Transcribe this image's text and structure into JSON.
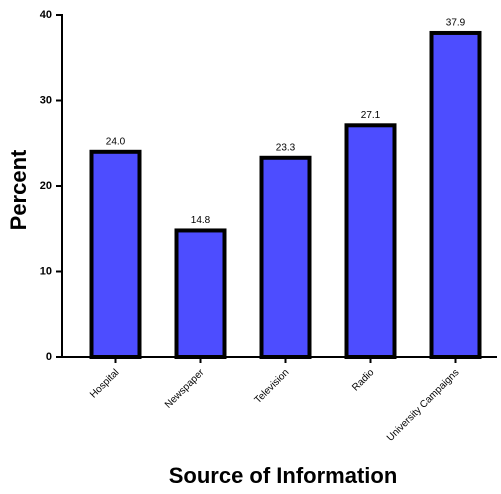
{
  "chart_data": {
    "type": "bar",
    "x_label": "Source of Information",
    "y_label": "Percent",
    "categories": [
      "Hospital",
      "Newspaper",
      "Television",
      "Radio",
      "University Campaigns"
    ],
    "values": [
      24.0,
      14.8,
      23.3,
      27.1,
      37.9
    ],
    "value_labels": [
      "24.0",
      "14.8",
      "23.3",
      "27.1",
      "37.9"
    ],
    "color": "#4d4dff",
    "ylim": [
      0,
      40
    ],
    "yticks": [
      0,
      10,
      20,
      30,
      40
    ]
  }
}
